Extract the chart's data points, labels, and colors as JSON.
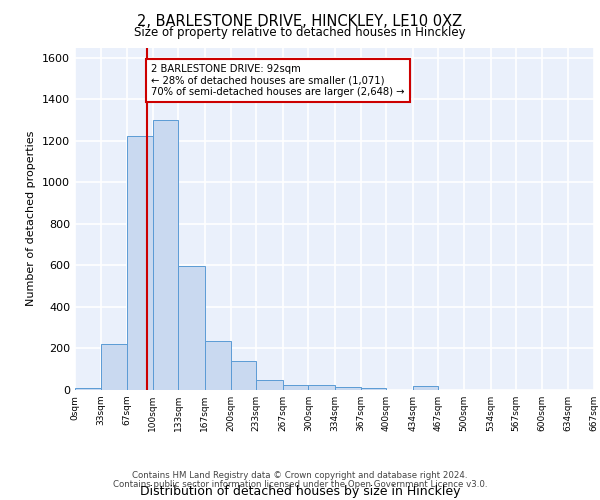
{
  "title_line1": "2, BARLESTONE DRIVE, HINCKLEY, LE10 0XZ",
  "title_line2": "Size of property relative to detached houses in Hinckley",
  "xlabel": "Distribution of detached houses by size in Hinckley",
  "ylabel": "Number of detached properties",
  "bin_edges": [
    0,
    33,
    67,
    100,
    133,
    167,
    200,
    233,
    267,
    300,
    334,
    367,
    400,
    434,
    467,
    500,
    534,
    567,
    600,
    634,
    667
  ],
  "bar_heights": [
    10,
    220,
    1225,
    1300,
    595,
    235,
    140,
    50,
    25,
    25,
    15,
    10,
    0,
    20,
    0,
    0,
    0,
    0,
    0,
    0
  ],
  "bar_color": "#c9d9f0",
  "bar_edgecolor": "#5b9bd5",
  "vline_x": 92,
  "vline_color": "#cc0000",
  "ylim": [
    0,
    1650
  ],
  "yticks": [
    0,
    200,
    400,
    600,
    800,
    1000,
    1200,
    1400,
    1600
  ],
  "annotation_text": "2 BARLESTONE DRIVE: 92sqm\n← 28% of detached houses are smaller (1,071)\n70% of semi-detached houses are larger (2,648) →",
  "annotation_box_color": "#ffffff",
  "annotation_box_edgecolor": "#cc0000",
  "footer_line1": "Contains HM Land Registry data © Crown copyright and database right 2024.",
  "footer_line2": "Contains public sector information licensed under the Open Government Licence v3.0.",
  "bg_color": "#eaf0fb",
  "grid_color": "#ffffff",
  "tick_labels": [
    "0sqm",
    "33sqm",
    "67sqm",
    "100sqm",
    "133sqm",
    "167sqm",
    "200sqm",
    "233sqm",
    "267sqm",
    "300sqm",
    "334sqm",
    "367sqm",
    "400sqm",
    "434sqm",
    "467sqm",
    "500sqm",
    "534sqm",
    "567sqm",
    "600sqm",
    "634sqm",
    "667sqm"
  ]
}
